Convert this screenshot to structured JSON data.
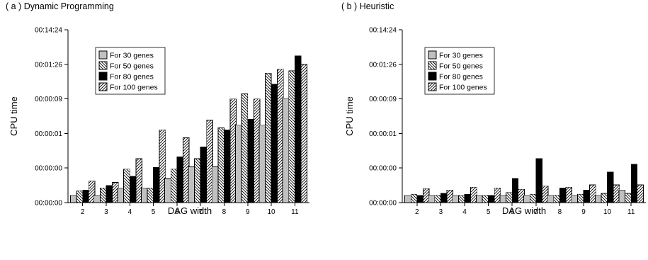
{
  "chart_data": [
    {
      "type": "bar",
      "title": "( a ) Dynamic Programming",
      "xlabel": "DAG width",
      "ylabel": "CPU time",
      "yscale": "log",
      "y_tick_labels": [
        "00:00:00",
        "00:00:00",
        "00:00:01",
        "00:00:09",
        "00:01:26",
        "00:14:24"
      ],
      "y_tick_values_seconds": [
        0.0864,
        0.864,
        8.64,
        86.4,
        864,
        8640
      ],
      "ylim_seconds": [
        0.0864,
        8640
      ],
      "grid": false,
      "legend_position": "top-left",
      "categories": [
        "2",
        "3",
        "4",
        "5",
        "6",
        "7",
        "8",
        "9",
        "10",
        "11"
      ],
      "series": [
        {
          "name": "For 30 genes",
          "fill": "#c0c0c0",
          "pattern": "solid-gray",
          "values": [
            0.14,
            0.14,
            0.23,
            0.23,
            0.43,
            0.93,
            0.93,
            15.0,
            15.0,
            90.0
          ]
        },
        {
          "name": "For 50 genes",
          "fill": "#ffffff",
          "pattern": "backslash-hatch",
          "values": [
            0.19,
            0.23,
            0.8,
            0.23,
            0.8,
            1.6,
            12.5,
            120,
            480,
            560
          ]
        },
        {
          "name": "For 80 genes",
          "fill": "#000000",
          "pattern": "solid-black",
          "values": [
            0.2,
            0.27,
            0.5,
            0.9,
            1.8,
            3.5,
            11.0,
            22.0,
            230,
            1500
          ]
        },
        {
          "name": "For 100 genes",
          "fill": "#ffffff",
          "pattern": "slash-hatch",
          "values": [
            0.37,
            0.33,
            1.6,
            11.0,
            6.5,
            21.0,
            86.0,
            86.0,
            620,
            860
          ]
        }
      ]
    },
    {
      "type": "bar",
      "title": "( b ) Heuristic",
      "xlabel": "DAG width",
      "ylabel": "CPU time",
      "yscale": "log",
      "y_tick_labels": [
        "00:00:00",
        "00:00:00",
        "00:00:01",
        "00:00:09",
        "00:01:26",
        "00:14:24"
      ],
      "y_tick_values_seconds": [
        0.0864,
        0.864,
        8.64,
        86.4,
        864,
        8640
      ],
      "ylim_seconds": [
        0.0864,
        8640
      ],
      "grid": false,
      "legend_position": "top-left",
      "categories": [
        "2",
        "3",
        "4",
        "5",
        "6",
        "7",
        "8",
        "9",
        "10",
        "11"
      ],
      "series": [
        {
          "name": "For 30 genes",
          "fill": "#c0c0c0",
          "pattern": "solid-gray",
          "values": [
            0.14,
            0.14,
            0.14,
            0.14,
            0.14,
            0.14,
            0.14,
            0.14,
            0.14,
            0.2
          ]
        },
        {
          "name": "For 50 genes",
          "fill": "#ffffff",
          "pattern": "backslash-hatch",
          "values": [
            0.15,
            0.14,
            0.14,
            0.14,
            0.17,
            0.15,
            0.14,
            0.15,
            0.16,
            0.16
          ]
        },
        {
          "name": "For 80 genes",
          "fill": "#000000",
          "pattern": "solid-black",
          "values": [
            0.14,
            0.16,
            0.15,
            0.14,
            0.43,
            1.6,
            0.23,
            0.2,
            0.66,
            1.1
          ]
        },
        {
          "name": "For 100 genes",
          "fill": "#ffffff",
          "pattern": "slash-hatch",
          "values": [
            0.22,
            0.2,
            0.24,
            0.23,
            0.21,
            0.26,
            0.24,
            0.28,
            0.28,
            0.28
          ]
        }
      ]
    }
  ]
}
